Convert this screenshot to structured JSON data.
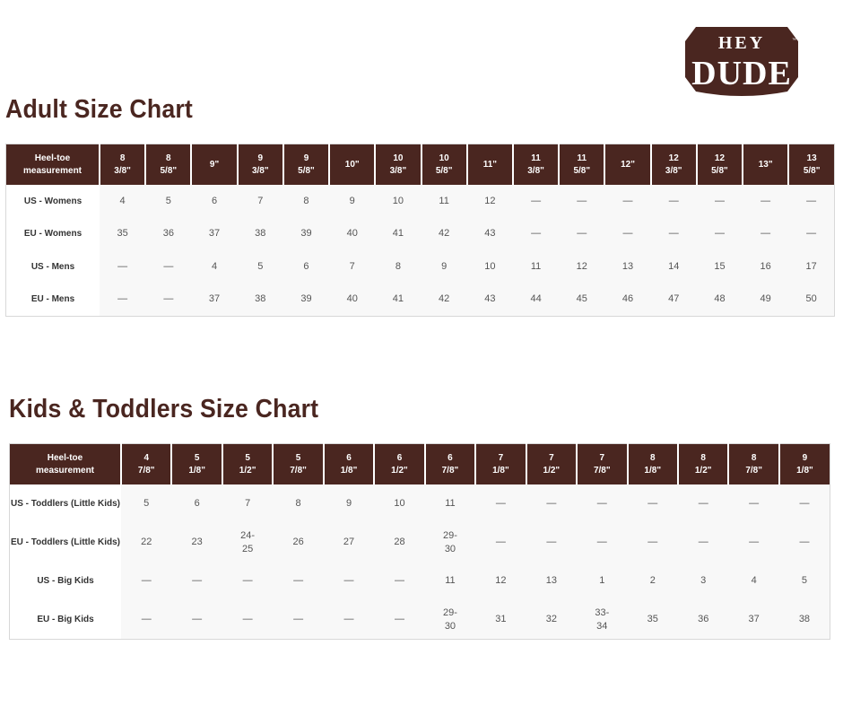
{
  "logo": {
    "text_top": "HEY",
    "text_bottom": "DUDE",
    "trademark": "™",
    "color": "#4a2620"
  },
  "adult": {
    "title": "Adult Size Chart",
    "header": [
      "Heel-toe\nmeasurement",
      "8\n3/8\"",
      "8\n5/8\"",
      "9\"",
      "9\n3/8\"",
      "9\n5/8\"",
      "10\"",
      "10\n3/8\"",
      "10\n5/8\"",
      "11\"",
      "11\n3/8\"",
      "11\n5/8\"",
      "12\"",
      "12\n3/8\"",
      "12\n5/8\"",
      "13\"",
      "13\n5/8\""
    ],
    "rows": [
      [
        "US - Womens",
        "4",
        "5",
        "6",
        "7",
        "8",
        "9",
        "10",
        "11",
        "12",
        "—",
        "—",
        "—",
        "—",
        "—",
        "—",
        "—"
      ],
      [
        "EU - Womens",
        "35",
        "36",
        "37",
        "38",
        "39",
        "40",
        "41",
        "42",
        "43",
        "—",
        "—",
        "—",
        "—",
        "—",
        "—",
        "—"
      ],
      [
        "US - Mens",
        "—",
        "—",
        "4",
        "5",
        "6",
        "7",
        "8",
        "9",
        "10",
        "11",
        "12",
        "13",
        "14",
        "15",
        "16",
        "17"
      ],
      [
        "EU - Mens",
        "—",
        "—",
        "37",
        "38",
        "39",
        "40",
        "41",
        "42",
        "43",
        "44",
        "45",
        "46",
        "47",
        "48",
        "49",
        "50"
      ]
    ]
  },
  "kids": {
    "title": "Kids & Toddlers Size Chart",
    "header": [
      "Heel-toe\nmeasurement",
      "4\n7/8\"",
      "5\n1/8\"",
      "5\n1/2\"",
      "5\n7/8\"",
      "6\n1/8\"",
      "6\n1/2\"",
      "6\n7/8\"",
      "7\n1/8\"",
      "7\n1/2\"",
      "7\n7/8\"",
      "8\n1/8\"",
      "8\n1/2\"",
      "8\n7/8\"",
      "9\n1/8\""
    ],
    "rows": [
      [
        "US - Toddlers (Little Kids)",
        "5",
        "6",
        "7",
        "8",
        "9",
        "10",
        "11",
        "—",
        "—",
        "—",
        "—",
        "—",
        "—",
        "—"
      ],
      [
        "EU - Toddlers (Little Kids)",
        "22",
        "23",
        "24-\n25",
        "26",
        "27",
        "28",
        "29-\n30",
        "—",
        "—",
        "—",
        "—",
        "—",
        "—",
        "—"
      ],
      [
        "US - Big Kids",
        "—",
        "—",
        "—",
        "—",
        "—",
        "—",
        "11",
        "12",
        "13",
        "1",
        "2",
        "3",
        "4",
        "5"
      ],
      [
        "EU - Big Kids",
        "—",
        "—",
        "—",
        "—",
        "—",
        "—",
        "29-\n30",
        "31",
        "32",
        "33-\n34",
        "35",
        "36",
        "37",
        "38"
      ]
    ]
  }
}
